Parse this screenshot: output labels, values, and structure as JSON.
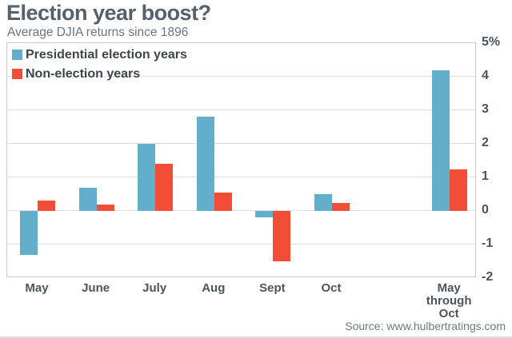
{
  "header": {
    "title": "Election year boost?",
    "subtitle": "Average DJIA returns since 1896"
  },
  "legend": {
    "items": [
      {
        "label": "Presidential election years",
        "color": "#63aecb"
      },
      {
        "label": "Non-election years",
        "color": "#f24e37"
      }
    ]
  },
  "chart_data": {
    "type": "bar",
    "title": "Election year boost?",
    "subtitle": "Average DJIA returns since 1896",
    "categories": [
      "May",
      "June",
      "July",
      "Aug",
      "Sept",
      "Oct",
      "May\nthrough\nOct"
    ],
    "series": [
      {
        "name": "Presidential election years",
        "color": "#63aecb",
        "values": [
          -1.3,
          0.7,
          2.0,
          2.8,
          -0.2,
          0.5,
          4.2
        ]
      },
      {
        "name": "Non-election years",
        "color": "#f24e37",
        "values": [
          0.3,
          0.2,
          1.4,
          0.55,
          -1.5,
          0.25,
          1.25
        ]
      }
    ],
    "ylabel": "",
    "xlabel": "",
    "ylim": [
      -2,
      5
    ],
    "y_ticks": [
      {
        "label": "5%",
        "value": 5
      },
      {
        "label": "4",
        "value": 4
      },
      {
        "label": "3",
        "value": 3
      },
      {
        "label": "2",
        "value": 2
      },
      {
        "label": "1",
        "value": 1
      },
      {
        "label": "0",
        "value": 0
      },
      {
        "label": "-1",
        "value": -1
      },
      {
        "label": "-2",
        "value": -2
      }
    ],
    "grid": "horizontal",
    "legend_position": "top-left",
    "units": "percent"
  },
  "source": {
    "text": "Source: www.hulbertratings.com"
  }
}
